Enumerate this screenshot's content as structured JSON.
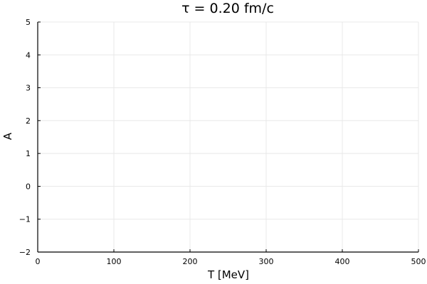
{
  "chart_data": {
    "type": "line",
    "title": "τ = 0.20 fm/c",
    "xlabel": "T [MeV]",
    "ylabel": "A",
    "xlim": [
      0,
      500
    ],
    "ylim": [
      -2,
      5
    ],
    "xticks": [
      0,
      100,
      200,
      300,
      400,
      500
    ],
    "yticks": [
      -2,
      -1,
      0,
      1,
      2,
      3,
      4,
      5
    ],
    "xtick_labels": [
      "0",
      "100",
      "200",
      "300",
      "400",
      "500"
    ],
    "ytick_labels": [
      "−2",
      "−1",
      "0",
      "1",
      "2",
      "3",
      "4",
      "5"
    ],
    "grid": true,
    "series": []
  }
}
